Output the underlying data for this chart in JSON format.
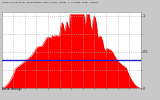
{
  "title": "Solar PV/Inverter Performance East Array Actual & Average Power Output",
  "bg_color": "#c8c8c8",
  "plot_bg_color": "#ffffff",
  "grid_color": "#aaaaaa",
  "red_fill_color": "#ff0000",
  "red_line_color": "#cc0000",
  "blue_line_color": "#2222cc",
  "blue_line_y": 0.38,
  "num_points": 288,
  "ylim": [
    0,
    1.05
  ],
  "xlim": [
    0,
    288
  ],
  "avg_line_value": 0.38,
  "figsize": [
    1.6,
    1.0
  ],
  "dpi": 100
}
